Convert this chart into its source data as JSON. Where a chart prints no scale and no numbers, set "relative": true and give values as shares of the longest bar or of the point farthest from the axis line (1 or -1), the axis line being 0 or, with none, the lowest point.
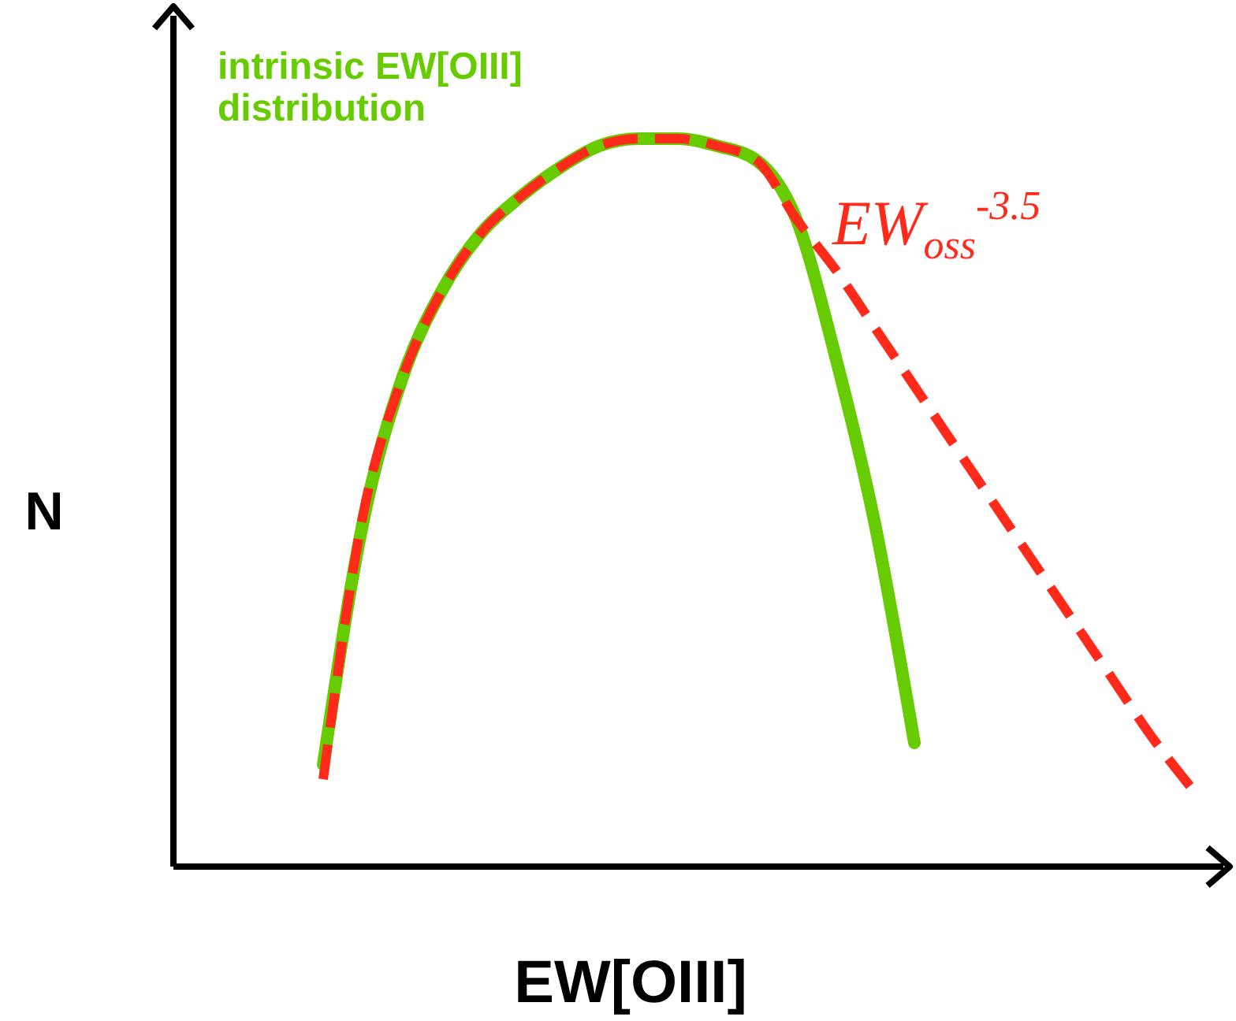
{
  "chart_data": {
    "type": "line",
    "relative": true,
    "xlabel": "EW[OIII]",
    "ylabel": "N",
    "categories": [
      null,
      null,
      null,
      null,
      null,
      null,
      null,
      null,
      null,
      null,
      null,
      null,
      null,
      null,
      null,
      null,
      null,
      null,
      null,
      null,
      null,
      null,
      null
    ],
    "series": [
      {
        "name": "intrinsic EW[OIII] distribution",
        "color": "#66cc00",
        "line_style": "solid",
        "values": [
          0.14,
          0.47,
          0.67,
          0.79,
          0.87,
          0.92,
          0.96,
          0.99,
          1.0,
          1.0,
          0.99,
          0.97,
          0.89,
          0.7,
          0.47,
          0.17,
          null,
          null,
          null,
          null,
          null,
          null,
          null
        ]
      },
      {
        "name": "EW$_{oss}$$^{-3.5}$",
        "color": "#ff2a1a",
        "line_style": "dashed",
        "values": [
          0.12,
          0.48,
          0.67,
          0.79,
          0.87,
          0.92,
          0.96,
          0.99,
          1.0,
          1.0,
          0.99,
          0.97,
          0.89,
          0.82,
          0.74,
          0.66,
          0.58,
          0.5,
          0.42,
          0.34,
          0.26,
          0.18,
          0.11
        ]
      }
    ]
  }
}
